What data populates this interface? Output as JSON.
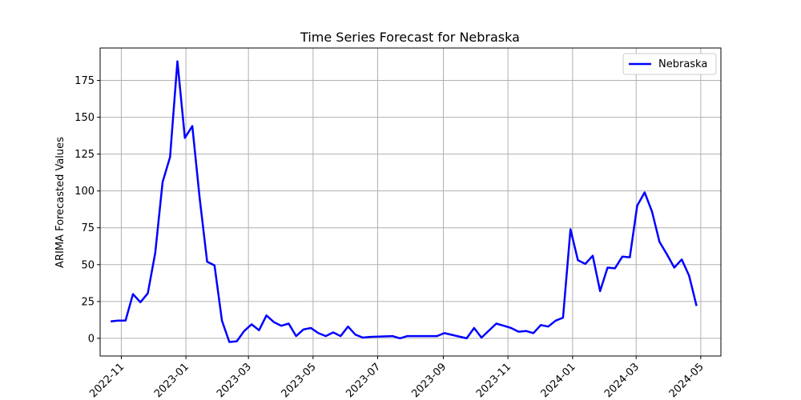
{
  "chart_data": {
    "type": "line",
    "title": "Time Series Forecast for Nebraska",
    "xlabel": "",
    "ylabel": "ARIMA Forecasted Values",
    "grid": true,
    "legend_position": "top-right",
    "xlim": [
      "2022-10-12",
      "2024-05-20"
    ],
    "ylim": [
      -12,
      197
    ],
    "y_ticks": [
      0,
      25,
      50,
      75,
      100,
      125,
      150,
      175
    ],
    "x_ticks": [
      {
        "date": "2022-11-01",
        "label": "2022-11"
      },
      {
        "date": "2023-01-01",
        "label": "2023-01"
      },
      {
        "date": "2023-03-01",
        "label": "2023-03"
      },
      {
        "date": "2023-05-01",
        "label": "2023-05"
      },
      {
        "date": "2023-07-01",
        "label": "2023-07"
      },
      {
        "date": "2023-09-01",
        "label": "2023-09"
      },
      {
        "date": "2023-11-01",
        "label": "2023-11"
      },
      {
        "date": "2024-01-01",
        "label": "2024-01"
      },
      {
        "date": "2024-03-01",
        "label": "2024-03"
      },
      {
        "date": "2024-05-01",
        "label": "2024-05"
      }
    ],
    "series": [
      {
        "name": "Nebraska",
        "color": "#0000ff",
        "x": [
          "2022-10-22",
          "2022-10-29",
          "2022-11-05",
          "2022-11-12",
          "2022-11-19",
          "2022-11-26",
          "2022-12-03",
          "2022-12-10",
          "2022-12-17",
          "2022-12-24",
          "2022-12-31",
          "2023-01-07",
          "2023-01-14",
          "2023-01-21",
          "2023-01-28",
          "2023-02-04",
          "2023-02-11",
          "2023-02-18",
          "2023-02-25",
          "2023-03-04",
          "2023-03-11",
          "2023-03-18",
          "2023-03-25",
          "2023-04-01",
          "2023-04-08",
          "2023-04-15",
          "2023-04-22",
          "2023-04-29",
          "2023-05-06",
          "2023-05-13",
          "2023-05-20",
          "2023-05-27",
          "2023-06-03",
          "2023-06-10",
          "2023-06-17",
          "2023-06-24",
          "2023-07-15",
          "2023-07-22",
          "2023-07-29",
          "2023-08-26",
          "2023-09-02",
          "2023-09-23",
          "2023-09-30",
          "2023-10-07",
          "2023-10-21",
          "2023-10-28",
          "2023-11-04",
          "2023-11-11",
          "2023-11-18",
          "2023-11-25",
          "2023-12-02",
          "2023-12-09",
          "2023-12-16",
          "2023-12-23",
          "2023-12-30",
          "2024-01-06",
          "2024-01-13",
          "2024-01-20",
          "2024-01-27",
          "2024-02-03",
          "2024-02-10",
          "2024-02-17",
          "2024-02-24",
          "2024-03-02",
          "2024-03-09",
          "2024-03-16",
          "2024-03-23",
          "2024-03-30",
          "2024-04-06",
          "2024-04-13",
          "2024-04-20",
          "2024-04-27"
        ],
        "values": [
          11.5,
          12,
          12,
          30,
          24.5,
          30.5,
          58,
          106,
          123,
          188,
          136,
          144,
          95,
          52,
          49.5,
          12,
          -2.5,
          -2,
          5,
          9.5,
          5.5,
          15.5,
          11,
          8.5,
          10,
          1.5,
          6,
          7,
          3.5,
          1.5,
          4,
          1.5,
          8,
          2.5,
          0.5,
          1,
          1.5,
          0,
          1.5,
          1.5,
          3.5,
          0,
          7,
          0.5,
          10,
          8.5,
          7,
          4.5,
          5,
          3.5,
          9,
          8,
          12,
          14,
          74,
          53,
          50.5,
          56,
          32,
          48,
          47.5,
          55.5,
          55,
          90,
          99,
          86,
          65.5,
          57,
          48,
          53.5,
          42.5,
          22
        ]
      }
    ]
  }
}
